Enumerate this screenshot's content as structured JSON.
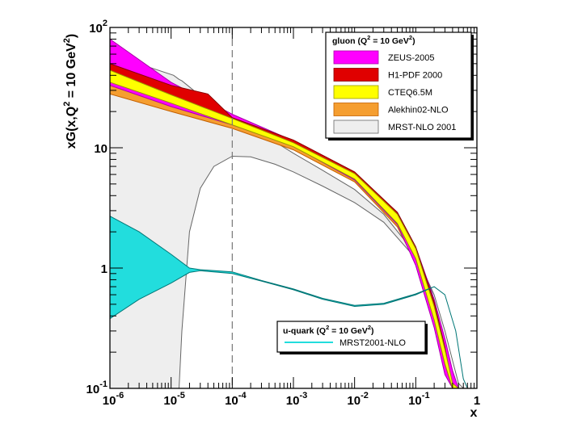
{
  "chart_data": {
    "type": "area",
    "xscale": "log",
    "yscale": "log",
    "xlim": [
      1e-06,
      1
    ],
    "ylim": [
      0.1,
      100
    ],
    "xlabel": {
      "base": "x"
    },
    "ylabel": {
      "prefix": "xG(x,Q",
      "exp": "2",
      "middle": " = 10 GeV",
      "exp2": "2",
      "suffix": ")"
    },
    "x_ticks": [
      {
        "value": 1e-06,
        "base": "10",
        "exp": "-6"
      },
      {
        "value": 1e-05,
        "base": "10",
        "exp": "-5"
      },
      {
        "value": 0.0001,
        "base": "10",
        "exp": "-4"
      },
      {
        "value": 0.001,
        "base": "10",
        "exp": "-3"
      },
      {
        "value": 0.01,
        "base": "10",
        "exp": "-2"
      },
      {
        "value": 0.1,
        "base": "10",
        "exp": "-1"
      },
      {
        "value": 1,
        "base": "1",
        "exp": ""
      }
    ],
    "y_ticks": [
      {
        "value": 0.1,
        "base": "10",
        "exp": "-1"
      },
      {
        "value": 1,
        "base": "1",
        "exp": ""
      },
      {
        "value": 10,
        "base": "10",
        "exp": ""
      },
      {
        "value": 100,
        "base": "10",
        "exp": "2"
      }
    ],
    "reference_line_x": 0.0001,
    "legend_gluon": {
      "title_prefix": "gluon (Q",
      "title_exp": "2",
      "title_middle": " = 10 GeV",
      "title_exp2": "2",
      "title_suffix": ")",
      "position": "top-right"
    },
    "legend_quark": {
      "title_prefix": "u-quark (Q",
      "title_exp": "2",
      "title_middle": " = 10 GeV",
      "title_exp2": "2",
      "title_suffix": ")",
      "position": "bottom-right"
    },
    "series": [
      {
        "name": "MRST-NLO 2001",
        "group": "gluon",
        "kind": "band",
        "color": "#eeeeee",
        "edge": "#666666",
        "x": [
          1e-06,
          1.1e-05,
          1.35e-05,
          1.5e-05,
          2e-05,
          3e-05,
          5e-05,
          0.0001,
          0.0002,
          0.0005,
          0.001,
          0.003,
          0.01,
          0.03,
          0.1,
          0.2,
          0.3,
          0.4,
          0.5,
          0.6
        ],
        "lower": [
          0.1,
          0.1,
          0.1,
          0.3,
          2.0,
          4.6,
          7.0,
          8.5,
          8.4,
          7.3,
          6.3,
          4.8,
          3.5,
          2.4,
          1.2,
          0.6,
          0.3,
          0.17,
          0.11,
          0.1
        ],
        "upper": [
          60,
          40,
          37,
          36,
          32,
          27,
          22,
          17.5,
          14.5,
          11.2,
          9.0,
          6.5,
          4.5,
          2.8,
          1.3,
          0.6,
          0.3,
          0.17,
          0.11,
          0.1
        ]
      },
      {
        "name": "Alekhin02-NLO",
        "group": "gluon",
        "kind": "band",
        "color": "#f59e30",
        "edge": "#c46000",
        "x": [
          1e-06,
          1e-05,
          0.0001,
          0.001,
          0.01,
          0.05,
          0.1,
          0.2,
          0.3,
          0.4,
          0.48
        ],
        "lower": [
          28,
          20,
          14.5,
          9.6,
          5.2,
          2.2,
          1.1,
          0.35,
          0.16,
          0.1,
          0.1
        ],
        "upper": [
          38,
          24,
          16.5,
          10.4,
          5.8,
          2.6,
          1.35,
          0.45,
          0.2,
          0.12,
          0.1
        ]
      },
      {
        "name": "ZEUS-2005",
        "group": "gluon",
        "kind": "band",
        "color": "#ff00ff",
        "edge": "#aa00aa",
        "x": [
          1e-06,
          1e-05,
          0.0001,
          0.001,
          0.01,
          0.05,
          0.1,
          0.2,
          0.3,
          0.4,
          0.5
        ],
        "lower": [
          33,
          22,
          15.5,
          10.3,
          5.4,
          2.3,
          1.05,
          0.32,
          0.13,
          0.07,
          0.04
        ],
        "upper": [
          80,
          35,
          19.0,
          11.4,
          6.2,
          2.9,
          1.5,
          0.55,
          0.26,
          0.14,
          0.08
        ]
      },
      {
        "name": "H1-PDF 2000",
        "group": "gluon",
        "kind": "band",
        "color": "#e00000",
        "edge": "#880000",
        "x": [
          1e-06,
          1e-05,
          4e-05,
          0.0001,
          0.001,
          0.01,
          0.05,
          0.1,
          0.2,
          0.3,
          0.4
        ],
        "lower": [
          36,
          25,
          18.5,
          16.0,
          10.6,
          5.7,
          2.4,
          1.2,
          0.38,
          0.16,
          0.1
        ],
        "upper": [
          50,
          33,
          28,
          17.8,
          11.6,
          6.3,
          2.9,
          1.5,
          0.52,
          0.22,
          0.1
        ]
      },
      {
        "name": "CTEQ6.5M",
        "group": "gluon",
        "kind": "band",
        "color": "#ffff00",
        "edge": "#999900",
        "x": [
          1e-06,
          1e-05,
          0.0001,
          0.001,
          0.01,
          0.05,
          0.1,
          0.2,
          0.3,
          0.4,
          0.5
        ],
        "lower": [
          35,
          23.5,
          15.5,
          10.2,
          5.5,
          2.35,
          1.2,
          0.37,
          0.16,
          0.08,
          0.05
        ],
        "upper": [
          44,
          27.5,
          17.5,
          11.0,
          6.1,
          2.8,
          1.45,
          0.48,
          0.21,
          0.11,
          0.07
        ]
      },
      {
        "name": "MRST2001-NLO",
        "group": "u-quark",
        "kind": "band",
        "color": "#22dddd",
        "edge": "#007777",
        "x": [
          1e-06,
          3e-06,
          1e-05,
          2e-05,
          3e-05,
          0.0001,
          0.0003,
          0.001,
          0.003,
          0.01,
          0.03,
          0.1,
          0.2,
          0.3,
          0.45,
          0.6,
          0.7
        ],
        "lower": [
          0.38,
          0.55,
          0.75,
          0.92,
          0.95,
          0.9,
          0.78,
          0.66,
          0.55,
          0.48,
          0.5,
          0.6,
          0.7,
          0.6,
          0.3,
          0.12,
          0.1
        ],
        "upper": [
          2.7,
          2.0,
          1.3,
          1.0,
          0.97,
          0.93,
          0.79,
          0.67,
          0.56,
          0.49,
          0.51,
          0.61,
          0.7,
          0.6,
          0.3,
          0.12,
          0.1
        ]
      }
    ]
  }
}
